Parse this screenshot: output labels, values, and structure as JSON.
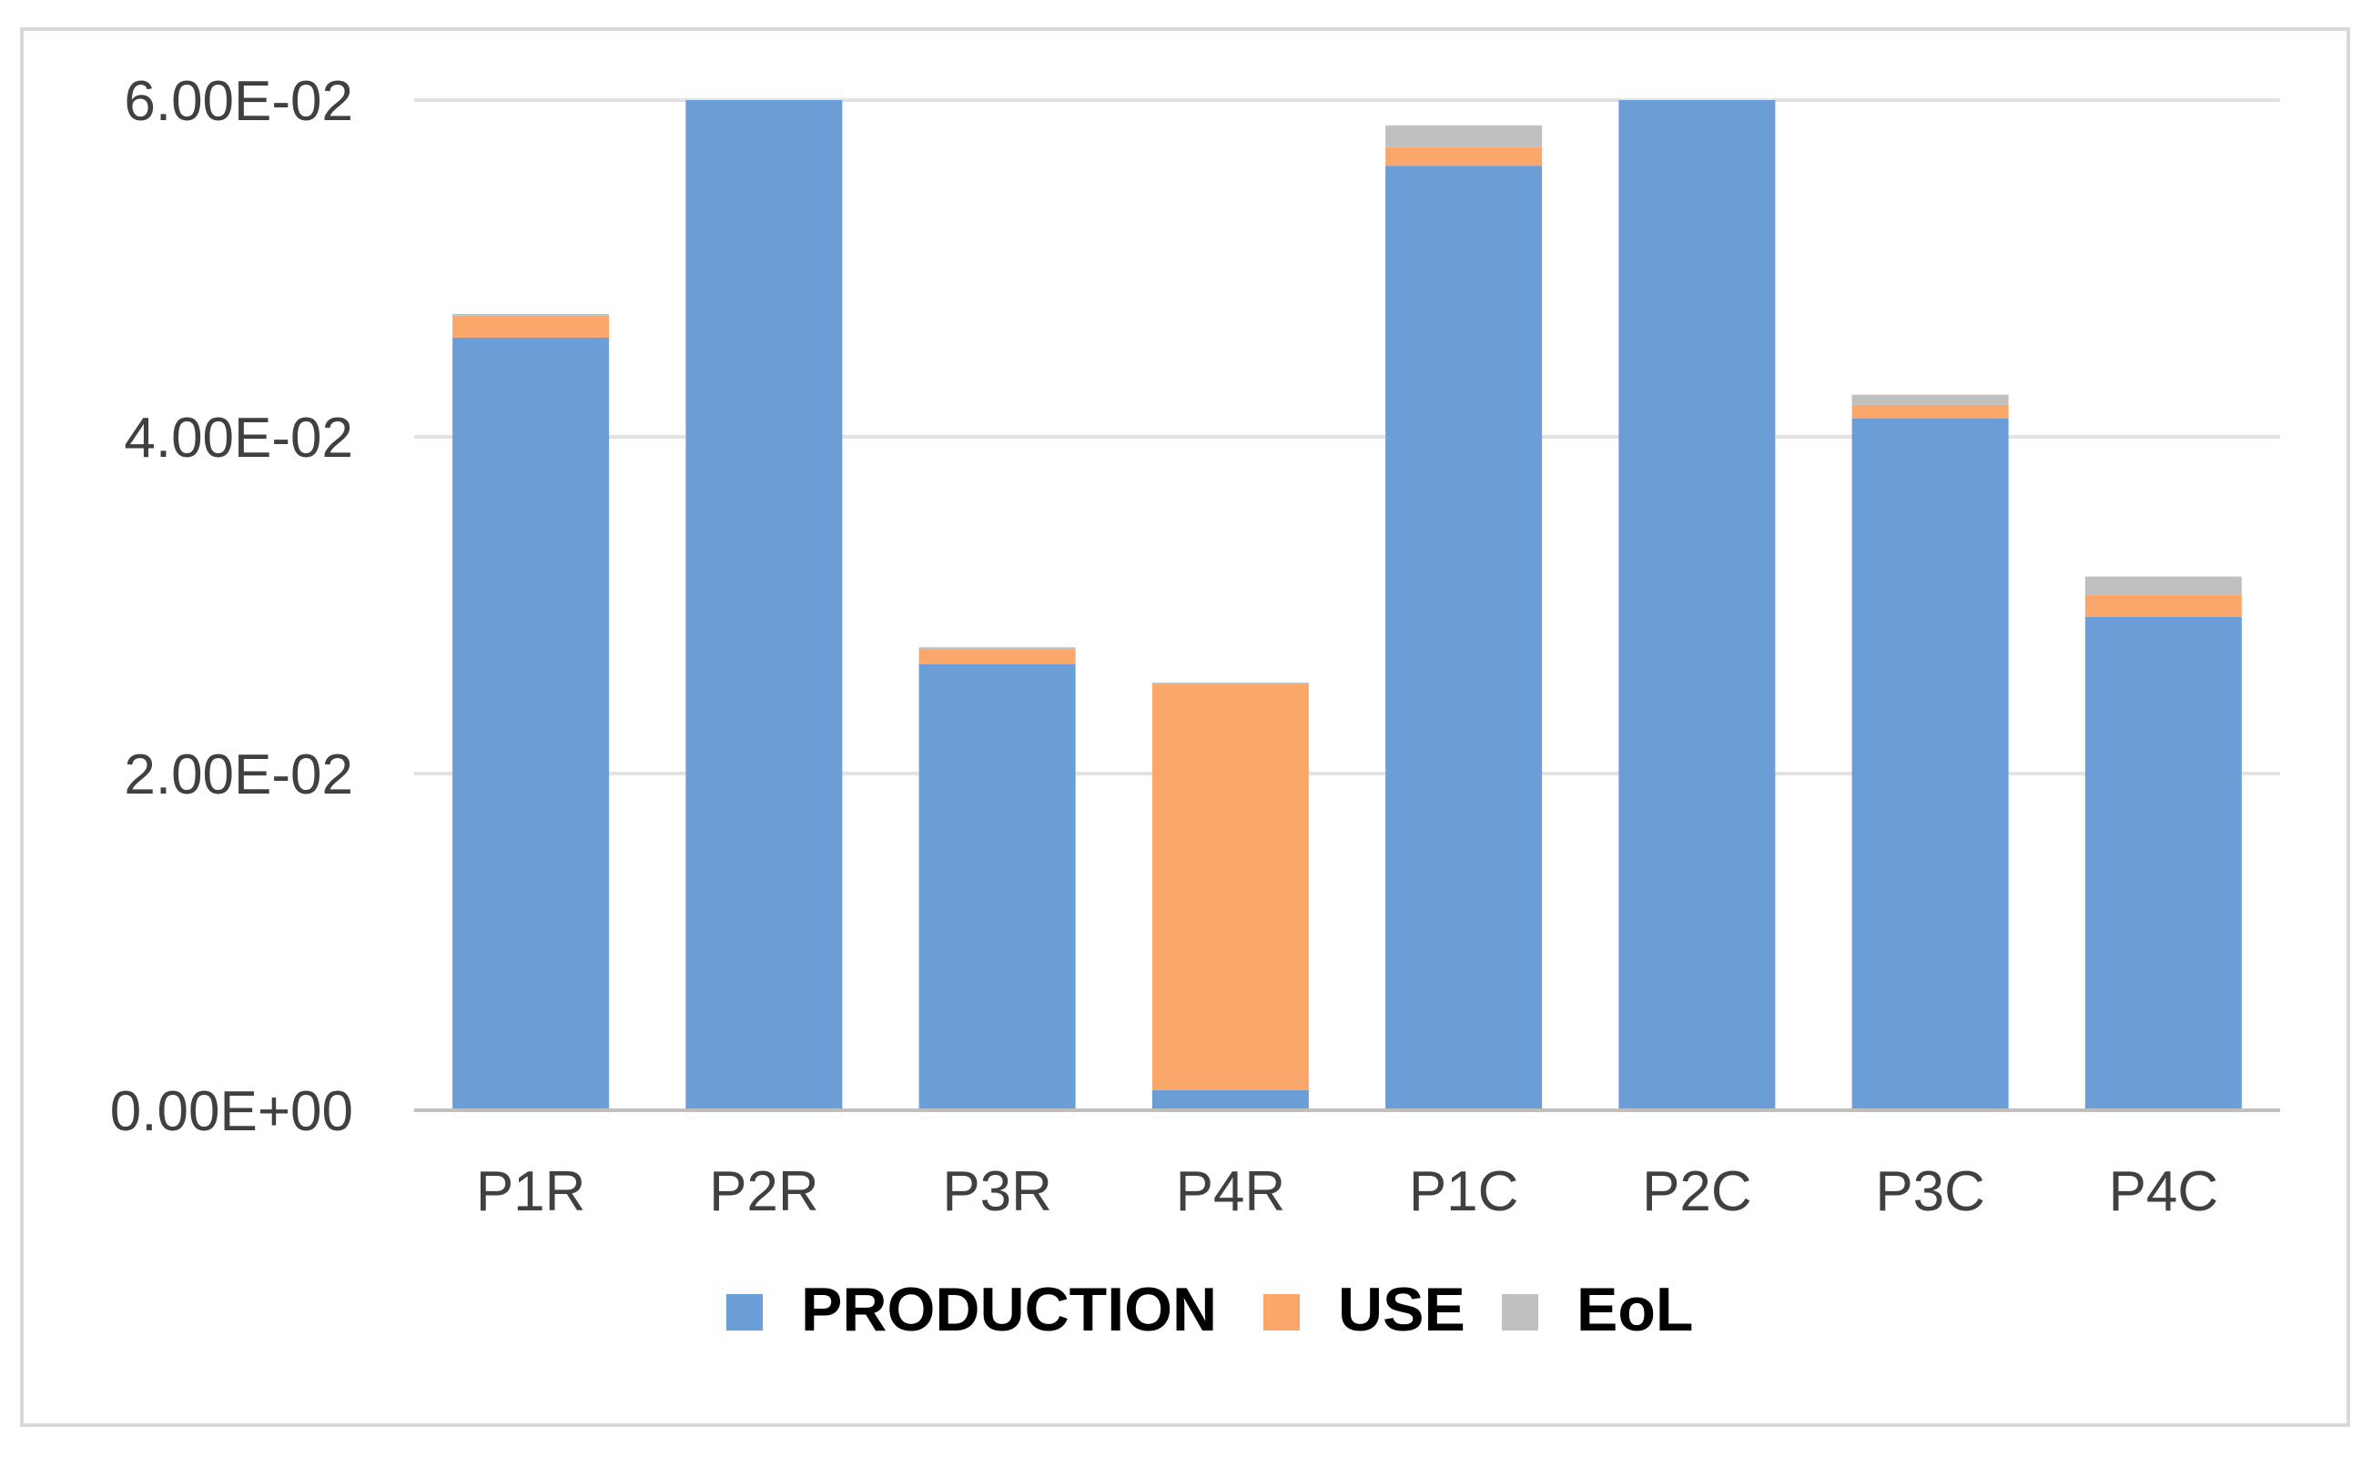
{
  "chart_data": {
    "type": "bar",
    "stacked": true,
    "title": "",
    "xlabel": "",
    "ylabel": "",
    "categories": [
      "P1R",
      "P2R",
      "P3R",
      "P4R",
      "P1C",
      "P2C",
      "P3C",
      "P4C"
    ],
    "series": [
      {
        "name": "PRODUCTION",
        "color": "#6b9ed7",
        "values": [
          0.0459,
          0.06,
          0.0265,
          0.0012,
          0.0561,
          0.06,
          0.0411,
          0.0293
        ]
      },
      {
        "name": "USE",
        "color": "#fba66b",
        "values": [
          0.0013,
          0.0,
          0.0009,
          0.0241,
          0.0011,
          0.0,
          0.0008,
          0.0013
        ]
      },
      {
        "name": "EoL",
        "color": "#c0c0c0",
        "values": [
          0.0001,
          0.0,
          0.0001,
          0.0001,
          0.0013,
          0.0,
          0.0006,
          0.0011
        ]
      }
    ],
    "ylim": [
      0,
      0.06
    ],
    "yticks": [
      0,
      0.02,
      0.04,
      0.06
    ],
    "ytick_labels": [
      "0.00E+00",
      "2.00E-02",
      "4.00E-02",
      "6.00E-02"
    ],
    "grid": true,
    "legend": "bottom"
  }
}
